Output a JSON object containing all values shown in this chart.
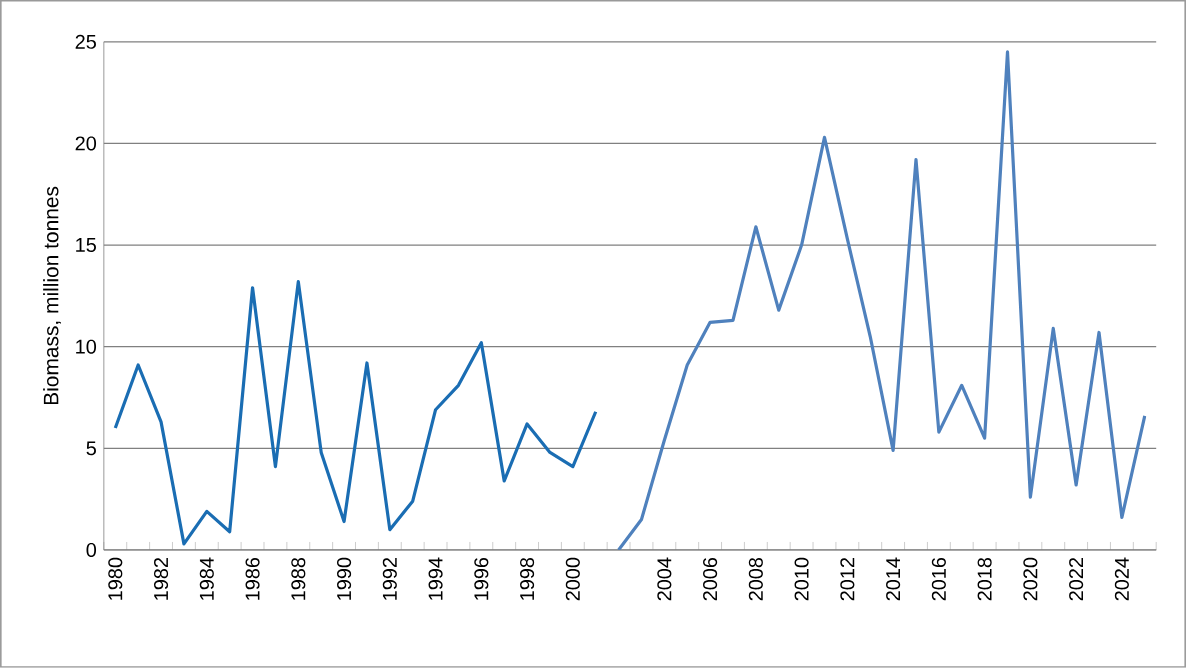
{
  "chart_data": {
    "type": "line",
    "ylabel": "Biomass, million tonnes",
    "categories": [
      "1980",
      null,
      "1982",
      null,
      "1984",
      null,
      "1986",
      null,
      "1988",
      null,
      "1990",
      null,
      "1992",
      null,
      "1994",
      null,
      "1996",
      null,
      "1998",
      null,
      "2000",
      null,
      null,
      null,
      "2004",
      null,
      "2006",
      null,
      "2008",
      null,
      "2010",
      null,
      "2012",
      null,
      "2014",
      null,
      "2016",
      null,
      "2018",
      null,
      "2020",
      null,
      "2022",
      null,
      "2024",
      null
    ],
    "series": [
      {
        "color": "#1a6db3",
        "values": [
          6.0,
          9.1,
          6.3,
          0.3,
          1.9,
          0.9,
          12.9,
          4.1,
          13.2,
          4.8,
          1.4,
          9.2,
          1.0,
          2.4,
          6.9,
          8.1,
          10.2,
          3.4,
          6.2,
          4.8,
          4.1,
          6.8,
          null,
          null,
          null,
          null,
          null,
          null,
          null,
          null,
          null,
          null,
          null,
          null,
          null,
          null,
          null,
          null,
          null,
          null,
          null,
          null,
          null,
          null,
          null,
          null
        ]
      },
      {
        "color": "#4f81bd",
        "values": [
          null,
          null,
          null,
          null,
          null,
          null,
          null,
          null,
          null,
          null,
          null,
          null,
          null,
          null,
          null,
          null,
          null,
          null,
          null,
          null,
          null,
          null,
          0.0,
          1.5,
          5.4,
          9.1,
          11.2,
          11.3,
          15.9,
          11.8,
          15.0,
          20.3,
          15.3,
          10.5,
          4.9,
          19.2,
          5.8,
          8.1,
          5.5,
          24.5,
          2.6,
          10.9,
          3.2,
          10.7,
          1.6,
          6.6
        ]
      }
    ],
    "ylim": [
      0,
      25
    ],
    "yticks": [
      0,
      5,
      10,
      15,
      20,
      25
    ],
    "grid": "y",
    "marker": "none",
    "line_style": "solid"
  }
}
